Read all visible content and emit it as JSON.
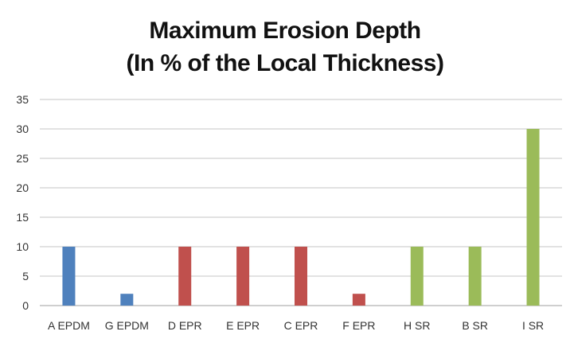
{
  "chart_data": {
    "type": "bar",
    "title": [
      "Maximum Erosion Depth",
      "(In % of the Local Thickness)"
    ],
    "categories": [
      "A EPDM",
      "G EPDM",
      "D EPR",
      "E EPR",
      "C EPR",
      "F EPR",
      "H SR",
      "B SR",
      "I SR"
    ],
    "values": [
      10,
      2,
      10,
      10,
      10,
      2,
      10,
      10,
      30
    ],
    "bar_colors": [
      "#4F81BD",
      "#4F81BD",
      "#C0504D",
      "#C0504D",
      "#C0504D",
      "#C0504D",
      "#9BBB59",
      "#9BBB59",
      "#9BBB59"
    ],
    "ylim": [
      0,
      35
    ],
    "yticks": [
      0,
      5,
      10,
      15,
      20,
      25,
      30,
      35
    ],
    "grid": true,
    "legend": "none",
    "xlabel": "",
    "ylabel": ""
  },
  "colors": {
    "grid": "#D9D9D9",
    "axis": "#BFBFBF"
  }
}
